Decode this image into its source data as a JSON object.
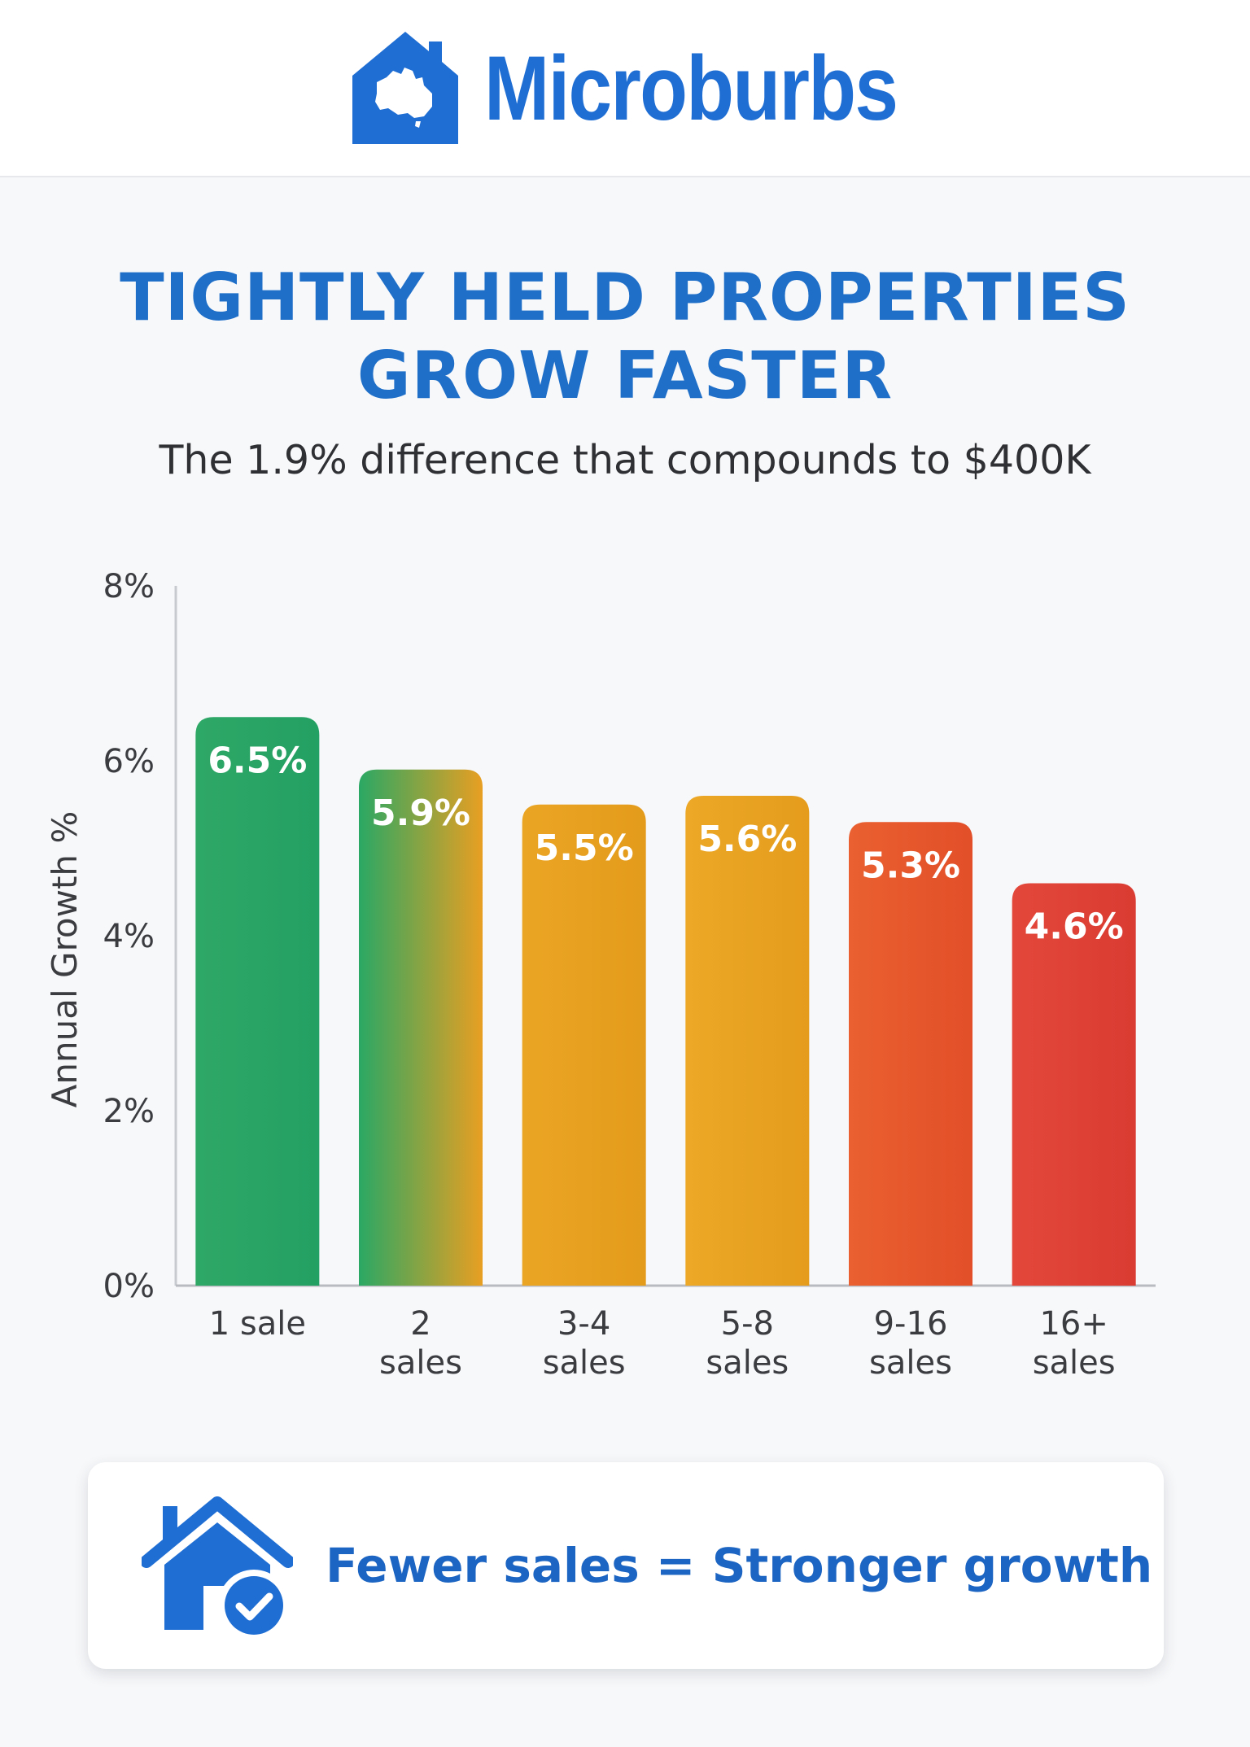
{
  "brand": {
    "name": "Microburbs",
    "logo_icon": "house-australia-icon",
    "color": "#1f6ed4"
  },
  "title_lines": [
    "TIGHTLY HELD PROPERTIES",
    "GROW FASTER"
  ],
  "subtitle": "The 1.9% difference that compounds to $400K",
  "callout": {
    "text": "Fewer sales = Stronger growth",
    "icon": "house-check-icon"
  },
  "chart_data": {
    "type": "bar",
    "categories": [
      [
        "1 sale"
      ],
      [
        "2",
        "sales"
      ],
      [
        "3-4",
        "sales"
      ],
      [
        "5-8",
        "sales"
      ],
      [
        "9-16",
        "sales"
      ],
      [
        "16+",
        "sales"
      ]
    ],
    "values": [
      6.5,
      5.9,
      5.5,
      5.6,
      5.3,
      4.6
    ],
    "value_labels": [
      "6.5%",
      "5.9%",
      "5.5%",
      "5.6%",
      "5.3%",
      "4.6%"
    ],
    "bar_colors": [
      [
        "#2fa866",
        "#23a063"
      ],
      [
        "#2aa864",
        "#e89f22"
      ],
      [
        "#eba524",
        "#e49b1b"
      ],
      [
        "#eca826",
        "#e59c1d"
      ],
      [
        "#ea6030",
        "#e24f29"
      ],
      [
        "#e3473a",
        "#da3b32"
      ]
    ],
    "ylabel": "Annual Growth %",
    "ylim": [
      0,
      8
    ],
    "yticks": [
      0,
      2,
      4,
      6,
      8
    ],
    "ytick_labels": [
      "0%",
      "2%",
      "4%",
      "6%",
      "8%"
    ],
    "grid": false
  }
}
